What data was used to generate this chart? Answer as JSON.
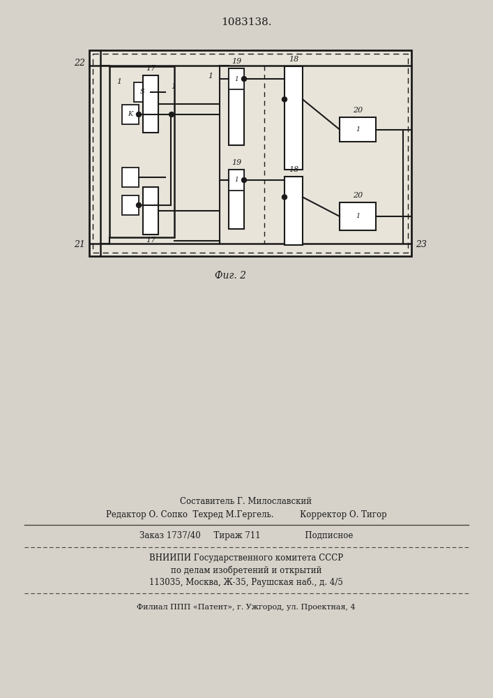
{
  "title": "1083138.",
  "fig_label": "Фиг. 2",
  "bg_color": "#d6d2ca",
  "line_color": "#1a1a1a",
  "footer": {
    "line1": "Составитель Г. Милославский",
    "line2": "Редактор О. Сопко  Техред М.Гергель.          Корректор О. Тигор",
    "line3": "Заказ 1737/40     Тираж 711                 Подписное",
    "line4": "ВНИИПИ Государственного комитета СССР",
    "line5": "по делам изобретений и открытий",
    "line6": "113035, Москва, Ж-35, Раушская наб., д. 4/5",
    "line7": "Филиал ППП «Патент», г. Ужгород, ул. Проектная, 4"
  }
}
